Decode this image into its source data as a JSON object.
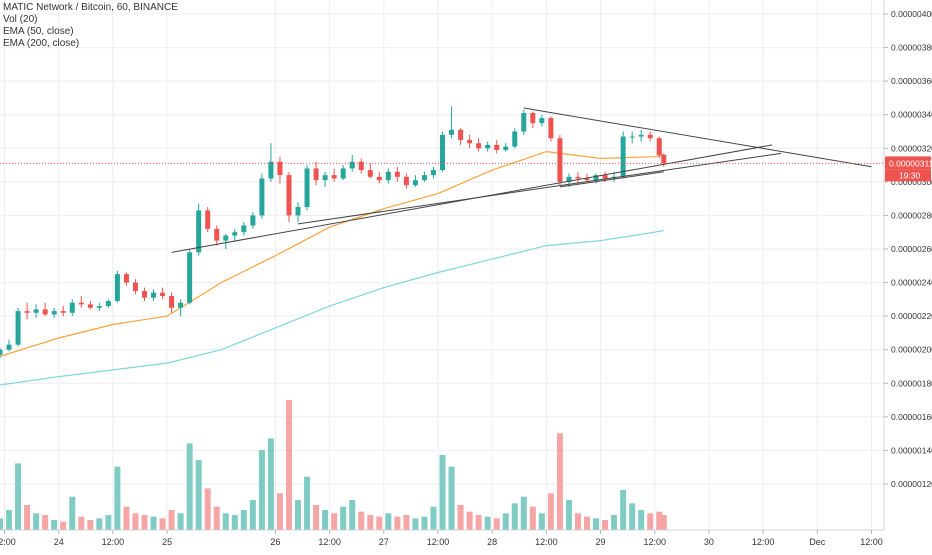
{
  "legend": {
    "symbol": "MATIC Network / Bitcoin, 60, BINANCE",
    "vol": "Vol (20)",
    "ema50": "EMA (50, close)",
    "ema200": "EMA (200, close)"
  },
  "price_tag": {
    "value": "0.00000311",
    "countdown": "19:30"
  },
  "colors": {
    "up": "#26a69a",
    "down": "#ef5350",
    "vol_up": "#80cbc4",
    "vol_down": "#f6a5a5",
    "ema50": "#f7a43a",
    "ema200": "#7fd6dc",
    "trendline": "#444444",
    "price_line": "#ef5350",
    "grid": "#ebeef2"
  },
  "chart_data": {
    "type": "candlestick",
    "y_axis": {
      "min": 1.1e-06,
      "max": 4e-06,
      "ticks": [
        "0.00000400",
        "0.00000380",
        "0.00000360",
        "0.00000340",
        "0.00000320",
        "0.00000300",
        "0.00000280",
        "0.00000260",
        "0.00000240",
        "0.00000220",
        "0.00000200",
        "0.00000180",
        "0.00000160",
        "0.00000140",
        "0.00000120"
      ]
    },
    "x_axis": {
      "start": "2019-11-23 11:00",
      "end": "2019-12-01 13:00",
      "ticks": [
        {
          "t": "2019-11-23 12:00",
          "label": "12:00"
        },
        {
          "t": "2019-11-24 00:00",
          "label": "24"
        },
        {
          "t": "2019-11-24 12:00",
          "label": "12:00"
        },
        {
          "t": "2019-11-25 00:00",
          "label": "25"
        },
        {
          "t": "2019-11-26 00:00",
          "label": "26"
        },
        {
          "t": "2019-11-26 12:00",
          "label": "12:00"
        },
        {
          "t": "2019-11-27 00:00",
          "label": "27"
        },
        {
          "t": "2019-11-27 12:00",
          "label": "12:00"
        },
        {
          "t": "2019-11-28 00:00",
          "label": "28"
        },
        {
          "t": "2019-11-28 12:00",
          "label": "12:00"
        },
        {
          "t": "2019-11-29 00:00",
          "label": "29"
        },
        {
          "t": "2019-11-29 12:00",
          "label": "12:00"
        },
        {
          "t": "2019-11-30 00:00",
          "label": "30"
        },
        {
          "t": "2019-11-30 12:00",
          "label": "12:00"
        },
        {
          "t": "2019-12-01 00:00",
          "label": "Dec"
        },
        {
          "t": "2019-12-01 12:00",
          "label": "12:00"
        }
      ]
    },
    "current_price": 3.11e-06,
    "candles": [
      {
        "t": "2019-11-23 11:00",
        "o": 1.97e-06,
        "h": 2.01e-06,
        "l": 1.95e-06,
        "c": 2e-06,
        "v": 7
      },
      {
        "t": "2019-11-23 13:00",
        "o": 2e-06,
        "h": 2.06e-06,
        "l": 1.99e-06,
        "c": 2.03e-06,
        "v": 12
      },
      {
        "t": "2019-11-23 15:00",
        "o": 2.03e-06,
        "h": 2.25e-06,
        "l": 2.02e-06,
        "c": 2.23e-06,
        "v": 40
      },
      {
        "t": "2019-11-23 17:00",
        "o": 2.23e-06,
        "h": 2.28e-06,
        "l": 2.18e-06,
        "c": 2.22e-06,
        "v": 15
      },
      {
        "t": "2019-11-23 19:00",
        "o": 2.22e-06,
        "h": 2.27e-06,
        "l": 2.19e-06,
        "c": 2.24e-06,
        "v": 10
      },
      {
        "t": "2019-11-23 21:00",
        "o": 2.24e-06,
        "h": 2.28e-06,
        "l": 2.2e-06,
        "c": 2.21e-06,
        "v": 9
      },
      {
        "t": "2019-11-23 23:00",
        "o": 2.21e-06,
        "h": 2.25e-06,
        "l": 2.19e-06,
        "c": 2.23e-06,
        "v": 6
      },
      {
        "t": "2019-11-24 01:00",
        "o": 2.23e-06,
        "h": 2.26e-06,
        "l": 2.2e-06,
        "c": 2.22e-06,
        "v": 5
      },
      {
        "t": "2019-11-24 03:00",
        "o": 2.22e-06,
        "h": 2.3e-06,
        "l": 2.2e-06,
        "c": 2.28e-06,
        "v": 20
      },
      {
        "t": "2019-11-24 05:00",
        "o": 2.28e-06,
        "h": 2.32e-06,
        "l": 2.25e-06,
        "c": 2.27e-06,
        "v": 8
      },
      {
        "t": "2019-11-24 07:00",
        "o": 2.27e-06,
        "h": 2.29e-06,
        "l": 2.24e-06,
        "c": 2.25e-06,
        "v": 6
      },
      {
        "t": "2019-11-24 09:00",
        "o": 2.25e-06,
        "h": 2.28e-06,
        "l": 2.23e-06,
        "c": 2.26e-06,
        "v": 7
      },
      {
        "t": "2019-11-24 11:00",
        "o": 2.26e-06,
        "h": 2.3e-06,
        "l": 2.25e-06,
        "c": 2.29e-06,
        "v": 9
      },
      {
        "t": "2019-11-24 13:00",
        "o": 2.29e-06,
        "h": 2.47e-06,
        "l": 2.28e-06,
        "c": 2.45e-06,
        "v": 38
      },
      {
        "t": "2019-11-24 15:00",
        "o": 2.45e-06,
        "h": 2.46e-06,
        "l": 2.38e-06,
        "c": 2.4e-06,
        "v": 14
      },
      {
        "t": "2019-11-24 17:00",
        "o": 2.4e-06,
        "h": 2.42e-06,
        "l": 2.33e-06,
        "c": 2.35e-06,
        "v": 10
      },
      {
        "t": "2019-11-24 19:00",
        "o": 2.35e-06,
        "h": 2.37e-06,
        "l": 2.29e-06,
        "c": 2.31e-06,
        "v": 9
      },
      {
        "t": "2019-11-24 21:00",
        "o": 2.31e-06,
        "h": 2.36e-06,
        "l": 2.29e-06,
        "c": 2.34e-06,
        "v": 8
      },
      {
        "t": "2019-11-24 23:00",
        "o": 2.34e-06,
        "h": 2.37e-06,
        "l": 2.3e-06,
        "c": 2.32e-06,
        "v": 7
      },
      {
        "t": "2019-11-25 01:00",
        "o": 2.32e-06,
        "h": 2.34e-06,
        "l": 2.22e-06,
        "c": 2.25e-06,
        "v": 12
      },
      {
        "t": "2019-11-25 03:00",
        "o": 2.25e-06,
        "h": 2.3e-06,
        "l": 2.2e-06,
        "c": 2.28e-06,
        "v": 10
      },
      {
        "t": "2019-11-25 05:00",
        "o": 2.28e-06,
        "h": 2.6e-06,
        "l": 2.27e-06,
        "c": 2.58e-06,
        "v": 52
      },
      {
        "t": "2019-11-25 07:00",
        "o": 2.58e-06,
        "h": 2.87e-06,
        "l": 2.56e-06,
        "c": 2.83e-06,
        "v": 42
      },
      {
        "t": "2019-11-25 09:00",
        "o": 2.83e-06,
        "h": 2.85e-06,
        "l": 2.7e-06,
        "c": 2.72e-06,
        "v": 25
      },
      {
        "t": "2019-11-25 11:00",
        "o": 2.72e-06,
        "h": 2.74e-06,
        "l": 2.62e-06,
        "c": 2.65e-06,
        "v": 14
      },
      {
        "t": "2019-11-25 13:00",
        "o": 2.65e-06,
        "h": 2.69e-06,
        "l": 2.6e-06,
        "c": 2.68e-06,
        "v": 10
      },
      {
        "t": "2019-11-25 15:00",
        "o": 2.68e-06,
        "h": 2.72e-06,
        "l": 2.65e-06,
        "c": 2.7e-06,
        "v": 9
      },
      {
        "t": "2019-11-25 17:00",
        "o": 2.7e-06,
        "h": 2.76e-06,
        "l": 2.68e-06,
        "c": 2.74e-06,
        "v": 12
      },
      {
        "t": "2019-11-25 19:00",
        "o": 2.74e-06,
        "h": 2.82e-06,
        "l": 2.72e-06,
        "c": 2.8e-06,
        "v": 18
      },
      {
        "t": "2019-11-25 21:00",
        "o": 2.8e-06,
        "h": 3.05e-06,
        "l": 2.78e-06,
        "c": 3.02e-06,
        "v": 48
      },
      {
        "t": "2019-11-25 23:00",
        "o": 3.02e-06,
        "h": 3.23e-06,
        "l": 3e-06,
        "c": 3.12e-06,
        "v": 55
      },
      {
        "t": "2019-11-26 01:00",
        "o": 3.12e-06,
        "h": 3.15e-06,
        "l": 2.99e-06,
        "c": 3.04e-06,
        "v": 22
      },
      {
        "t": "2019-11-26 03:00",
        "o": 3.04e-06,
        "h": 3.06e-06,
        "l": 2.76e-06,
        "c": 2.8e-06,
        "v": 78
      },
      {
        "t": "2019-11-26 05:00",
        "o": 2.8e-06,
        "h": 2.88e-06,
        "l": 2.76e-06,
        "c": 2.85e-06,
        "v": 18
      },
      {
        "t": "2019-11-26 07:00",
        "o": 2.85e-06,
        "h": 3.1e-06,
        "l": 2.83e-06,
        "c": 3.08e-06,
        "v": 32
      },
      {
        "t": "2019-11-26 09:00",
        "o": 3.08e-06,
        "h": 3.12e-06,
        "l": 2.98e-06,
        "c": 3.01e-06,
        "v": 15
      },
      {
        "t": "2019-11-26 11:00",
        "o": 3.01e-06,
        "h": 3.06e-06,
        "l": 2.97e-06,
        "c": 3.04e-06,
        "v": 12
      },
      {
        "t": "2019-11-26 13:00",
        "o": 3.04e-06,
        "h": 3.08e-06,
        "l": 3e-06,
        "c": 3.02e-06,
        "v": 10
      },
      {
        "t": "2019-11-26 15:00",
        "o": 3.02e-06,
        "h": 3.1e-06,
        "l": 3.01e-06,
        "c": 3.08e-06,
        "v": 14
      },
      {
        "t": "2019-11-26 17:00",
        "o": 3.08e-06,
        "h": 3.16e-06,
        "l": 3.06e-06,
        "c": 3.12e-06,
        "v": 18
      },
      {
        "t": "2019-11-26 19:00",
        "o": 3.12e-06,
        "h": 3.14e-06,
        "l": 3.05e-06,
        "c": 3.07e-06,
        "v": 11
      },
      {
        "t": "2019-11-26 21:00",
        "o": 3.07e-06,
        "h": 3.11e-06,
        "l": 3.02e-06,
        "c": 3.03e-06,
        "v": 9
      },
      {
        "t": "2019-11-26 23:00",
        "o": 3.03e-06,
        "h": 3.06e-06,
        "l": 2.99e-06,
        "c": 3.01e-06,
        "v": 8
      },
      {
        "t": "2019-11-27 01:00",
        "o": 3.01e-06,
        "h": 3.08e-06,
        "l": 2.99e-06,
        "c": 3.06e-06,
        "v": 10
      },
      {
        "t": "2019-11-27 03:00",
        "o": 3.06e-06,
        "h": 3.09e-06,
        "l": 3e-06,
        "c": 3.03e-06,
        "v": 8
      },
      {
        "t": "2019-11-27 05:00",
        "o": 3.03e-06,
        "h": 3.05e-06,
        "l": 2.96e-06,
        "c": 2.98e-06,
        "v": 9
      },
      {
        "t": "2019-11-27 07:00",
        "o": 2.98e-06,
        "h": 3.04e-06,
        "l": 2.97e-06,
        "c": 3.01e-06,
        "v": 7
      },
      {
        "t": "2019-11-27 09:00",
        "o": 3.01e-06,
        "h": 3.06e-06,
        "l": 3e-06,
        "c": 3.04e-06,
        "v": 8
      },
      {
        "t": "2019-11-27 11:00",
        "o": 3.04e-06,
        "h": 3.09e-06,
        "l": 3.02e-06,
        "c": 3.07e-06,
        "v": 14
      },
      {
        "t": "2019-11-27 13:00",
        "o": 3.07e-06,
        "h": 3.3e-06,
        "l": 3.06e-06,
        "c": 3.28e-06,
        "v": 45
      },
      {
        "t": "2019-11-27 15:00",
        "o": 3.28e-06,
        "h": 3.45e-06,
        "l": 3.26e-06,
        "c": 3.31e-06,
        "v": 38
      },
      {
        "t": "2019-11-27 17:00",
        "o": 3.31e-06,
        "h": 3.32e-06,
        "l": 3.22e-06,
        "c": 3.25e-06,
        "v": 15
      },
      {
        "t": "2019-11-27 19:00",
        "o": 3.25e-06,
        "h": 3.28e-06,
        "l": 3.2e-06,
        "c": 3.23e-06,
        "v": 11
      },
      {
        "t": "2019-11-27 21:00",
        "o": 3.23e-06,
        "h": 3.26e-06,
        "l": 3.18e-06,
        "c": 3.2e-06,
        "v": 9
      },
      {
        "t": "2019-11-27 23:00",
        "o": 3.2e-06,
        "h": 3.24e-06,
        "l": 3.18e-06,
        "c": 3.22e-06,
        "v": 8
      },
      {
        "t": "2019-11-28 01:00",
        "o": 3.22e-06,
        "h": 3.25e-06,
        "l": 3.17e-06,
        "c": 3.19e-06,
        "v": 7
      },
      {
        "t": "2019-11-28 03:00",
        "o": 3.19e-06,
        "h": 3.23e-06,
        "l": 3.18e-06,
        "c": 3.21e-06,
        "v": 10
      },
      {
        "t": "2019-11-28 05:00",
        "o": 3.21e-06,
        "h": 3.32e-06,
        "l": 3.2e-06,
        "c": 3.3e-06,
        "v": 16
      },
      {
        "t": "2019-11-28 07:00",
        "o": 3.3e-06,
        "h": 3.43e-06,
        "l": 3.28e-06,
        "c": 3.41e-06,
        "v": 20
      },
      {
        "t": "2019-11-28 09:00",
        "o": 3.41e-06,
        "h": 3.42e-06,
        "l": 3.32e-06,
        "c": 3.35e-06,
        "v": 14
      },
      {
        "t": "2019-11-28 11:00",
        "o": 3.35e-06,
        "h": 3.4e-06,
        "l": 3.33e-06,
        "c": 3.38e-06,
        "v": 10
      },
      {
        "t": "2019-11-28 13:00",
        "o": 3.38e-06,
        "h": 3.39e-06,
        "l": 3.24e-06,
        "c": 3.26e-06,
        "v": 22
      },
      {
        "t": "2019-11-28 15:00",
        "o": 3.26e-06,
        "h": 3.28e-06,
        "l": 2.98e-06,
        "c": 3e-06,
        "v": 58
      },
      {
        "t": "2019-11-28 17:00",
        "o": 3e-06,
        "h": 3.05e-06,
        "l": 2.97e-06,
        "c": 3.03e-06,
        "v": 18
      },
      {
        "t": "2019-11-28 19:00",
        "o": 3.03e-06,
        "h": 3.06e-06,
        "l": 2.99e-06,
        "c": 3.02e-06,
        "v": 10
      },
      {
        "t": "2019-11-28 21:00",
        "o": 3.02e-06,
        "h": 3.05e-06,
        "l": 3e-06,
        "c": 3.01e-06,
        "v": 8
      },
      {
        "t": "2019-11-28 23:00",
        "o": 3.01e-06,
        "h": 3.05e-06,
        "l": 2.99e-06,
        "c": 3.04e-06,
        "v": 7
      },
      {
        "t": "2019-11-29 01:00",
        "o": 3.04e-06,
        "h": 3.06e-06,
        "l": 3e-06,
        "c": 3.02e-06,
        "v": 6
      },
      {
        "t": "2019-11-29 03:00",
        "o": 3.02e-06,
        "h": 3.06e-06,
        "l": 3e-06,
        "c": 3.03e-06,
        "v": 9
      },
      {
        "t": "2019-11-29 05:00",
        "o": 3.03e-06,
        "h": 3.3e-06,
        "l": 3.02e-06,
        "c": 3.27e-06,
        "v": 24
      },
      {
        "t": "2019-11-29 07:00",
        "o": 3.27e-06,
        "h": 3.3e-06,
        "l": 3.23e-06,
        "c": 3.27e-06,
        "v": 16
      },
      {
        "t": "2019-11-29 09:00",
        "o": 3.27e-06,
        "h": 3.31e-06,
        "l": 3.24e-06,
        "c": 3.28e-06,
        "v": 12
      },
      {
        "t": "2019-11-29 11:00",
        "o": 3.28e-06,
        "h": 3.3e-06,
        "l": 3.24e-06,
        "c": 3.26e-06,
        "v": 10
      },
      {
        "t": "2019-11-29 13:00",
        "o": 3.26e-06,
        "h": 3.27e-06,
        "l": 3.14e-06,
        "c": 3.16e-06,
        "v": 11
      },
      {
        "t": "2019-11-29 14:00",
        "o": 3.16e-06,
        "h": 3.17e-06,
        "l": 3.09e-06,
        "c": 3.11e-06,
        "v": 9
      }
    ],
    "ema50": [
      {
        "t": "2019-11-23 11:00",
        "v": 1.96e-06
      },
      {
        "t": "2019-11-24 00:00",
        "v": 2.07e-06
      },
      {
        "t": "2019-11-24 12:00",
        "v": 2.15e-06
      },
      {
        "t": "2019-11-25 00:00",
        "v": 2.2e-06
      },
      {
        "t": "2019-11-25 12:00",
        "v": 2.4e-06
      },
      {
        "t": "2019-11-26 00:00",
        "v": 2.56e-06
      },
      {
        "t": "2019-11-26 12:00",
        "v": 2.73e-06
      },
      {
        "t": "2019-11-27 00:00",
        "v": 2.84e-06
      },
      {
        "t": "2019-11-27 12:00",
        "v": 2.93e-06
      },
      {
        "t": "2019-11-28 00:00",
        "v": 3.07e-06
      },
      {
        "t": "2019-11-28 12:00",
        "v": 3.18e-06
      },
      {
        "t": "2019-11-29 00:00",
        "v": 3.14e-06
      },
      {
        "t": "2019-11-29 12:00",
        "v": 3.15e-06
      },
      {
        "t": "2019-11-29 14:00",
        "v": 3.16e-06
      }
    ],
    "ema200": [
      {
        "t": "2019-11-23 11:00",
        "v": 1.79e-06
      },
      {
        "t": "2019-11-24 00:00",
        "v": 1.84e-06
      },
      {
        "t": "2019-11-24 12:00",
        "v": 1.88e-06
      },
      {
        "t": "2019-11-25 00:00",
        "v": 1.92e-06
      },
      {
        "t": "2019-11-25 12:00",
        "v": 2e-06
      },
      {
        "t": "2019-11-26 00:00",
        "v": 2.13e-06
      },
      {
        "t": "2019-11-26 12:00",
        "v": 2.26e-06
      },
      {
        "t": "2019-11-27 00:00",
        "v": 2.37e-06
      },
      {
        "t": "2019-11-27 12:00",
        "v": 2.46e-06
      },
      {
        "t": "2019-11-28 00:00",
        "v": 2.54e-06
      },
      {
        "t": "2019-11-28 12:00",
        "v": 2.62e-06
      },
      {
        "t": "2019-11-29 00:00",
        "v": 2.65e-06
      },
      {
        "t": "2019-11-29 12:00",
        "v": 2.7e-06
      },
      {
        "t": "2019-11-29 14:00",
        "v": 2.71e-06
      }
    ],
    "trendlines": [
      {
        "from": {
          "t": "2019-11-25 01:00",
          "p": 2.58e-06
        },
        "to": {
          "t": "2019-11-30 14:00",
          "p": 3.22e-06
        }
      },
      {
        "from": {
          "t": "2019-11-26 05:00",
          "p": 2.75e-06
        },
        "to": {
          "t": "2019-11-30 16:00",
          "p": 3.17e-06
        }
      },
      {
        "from": {
          "t": "2019-11-28 07:00",
          "p": 3.44e-06
        },
        "to": {
          "t": "2019-12-01 12:00",
          "p": 3.09e-06
        }
      },
      {
        "from": {
          "t": "2019-11-28 15:00",
          "p": 2.97e-06
        },
        "to": {
          "t": "2019-11-29 14:00",
          "p": 3.06e-06
        }
      }
    ]
  }
}
